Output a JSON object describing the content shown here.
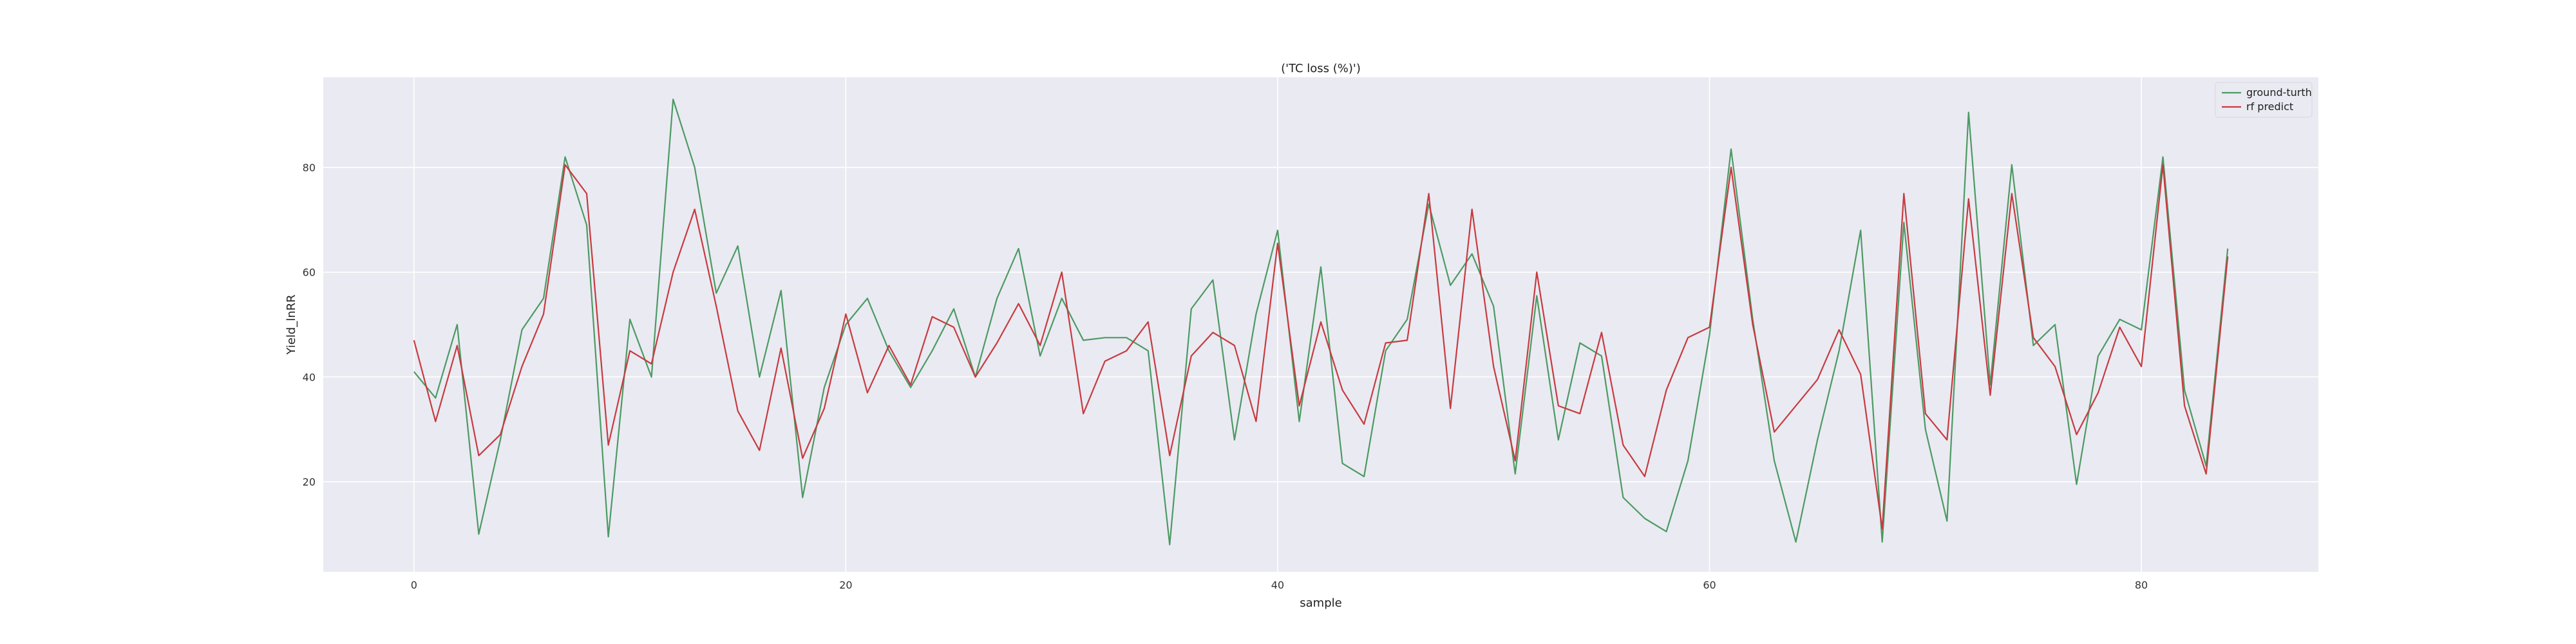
{
  "chart_data": {
    "type": "line",
    "title": "('TC loss (%)')",
    "xlabel": "sample",
    "ylabel": "Yield_lnRR",
    "xlim": [
      -4.2,
      88.2
    ],
    "ylim": [
      2.8,
      97.2
    ],
    "xticks": [
      0,
      20,
      40,
      60,
      80
    ],
    "yticks": [
      20,
      40,
      60,
      80
    ],
    "grid": true,
    "legend": "top-right",
    "background": "#eaeaf2",
    "series": [
      {
        "name": "ground-turth",
        "color": "#4c9a63",
        "values": [
          41,
          36,
          50,
          10,
          28,
          49,
          55,
          82,
          69,
          9.5,
          51,
          40,
          93,
          80,
          56,
          65,
          40,
          56.5,
          17,
          38,
          50,
          55,
          45,
          38,
          45,
          53,
          40,
          55,
          64.5,
          44,
          55,
          47,
          47.5,
          47.5,
          45,
          8,
          53,
          58.5,
          28,
          52,
          68,
          31.5,
          61,
          23.5,
          21,
          45,
          51,
          73,
          57.5,
          63.5,
          53.5,
          21.5,
          55.5,
          28,
          46.5,
          44,
          17,
          13,
          10.5,
          24,
          48,
          83.5,
          51,
          24,
          8.5,
          28,
          45,
          68,
          8.5,
          69.5,
          30,
          12.5,
          90.5,
          38.5,
          80.5,
          46,
          50,
          19.5,
          44,
          51,
          49,
          82,
          37.5,
          23,
          64.5
        ]
      },
      {
        "name": "rf predict",
        "color": "#c63b40",
        "values": [
          47,
          31.5,
          46,
          25,
          29,
          42,
          52,
          80.5,
          75,
          27,
          45,
          42.5,
          60,
          72,
          53.5,
          33.5,
          26,
          45.5,
          24.5,
          34,
          52,
          37,
          46,
          38.5,
          51.5,
          49.5,
          40,
          46.5,
          54,
          46,
          60,
          33,
          43,
          45,
          50.5,
          25,
          44,
          48.5,
          46,
          31.5,
          65.5,
          34.5,
          50.5,
          37.5,
          31,
          46.5,
          47,
          75,
          34,
          72,
          42,
          24,
          60,
          34.5,
          33,
          48.5,
          27,
          21,
          37.5,
          47.5,
          49.5,
          80,
          50,
          29.5,
          34.5,
          39.5,
          49,
          40.5,
          11,
          75,
          33,
          28,
          74,
          36.5,
          75,
          47.5,
          42,
          29,
          37,
          49.5,
          42,
          80.5,
          34.5,
          21.5,
          63
        ]
      }
    ]
  }
}
